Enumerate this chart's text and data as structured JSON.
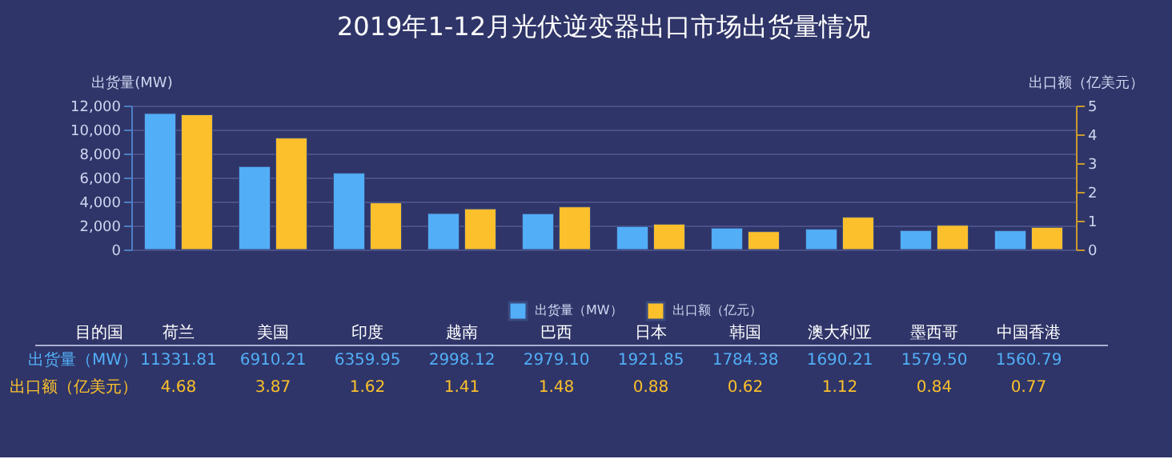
{
  "chart_data": {
    "type": "bar",
    "title": "2019年1-12月光伏逆变器出口市场出货量情况",
    "categories": [
      "荷兰",
      "美国",
      "印度",
      "越南",
      "巴西",
      "日本",
      "韩国",
      "澳大利亚",
      "墨西哥",
      "中国香港"
    ],
    "series": [
      {
        "name": "出货量（MW）",
        "color": "#52aef7",
        "values": [
          11331.81,
          6910.21,
          6359.95,
          2998.12,
          2979.1,
          1921.85,
          1784.38,
          1690.21,
          1579.5,
          1560.79
        ],
        "value_labels": [
          "11331.81",
          "6910.21",
          "6359.95",
          "2998.12",
          "2979.10",
          "1921.85",
          "1784.38",
          "1690.21",
          "1579.50",
          "1560.79"
        ]
      },
      {
        "name": "出口额（亿元）",
        "color": "#fcc02c",
        "axis": "y2",
        "values": [
          4.68,
          3.87,
          1.62,
          1.41,
          1.48,
          0.88,
          0.62,
          1.12,
          0.84,
          0.77
        ],
        "value_labels": [
          "4.68",
          "3.87",
          "1.62",
          "1.41",
          "1.48",
          "0.88",
          "0.62",
          "1.12",
          "0.84",
          "0.77"
        ]
      }
    ],
    "ylabel": "出货量(MW)",
    "y2label": "出口额（亿美元）",
    "ylim": [
      0,
      12000
    ],
    "yticks": [
      0,
      {
        "value": 2000,
        "label": "2,000"
      },
      {
        "value": 4000,
        "label": "4,000"
      },
      {
        "value": 6000,
        "label": "6,000"
      },
      {
        "value": 8000,
        "label": "8,000"
      },
      {
        "value": 10000,
        "label": "10,000"
      },
      {
        "value": 12000,
        "label": "12,000"
      }
    ],
    "y2lim": [
      0,
      5
    ],
    "y2ticks": [
      0,
      1,
      2,
      3,
      4,
      5
    ],
    "annotations": [
      "目的国",
      "出货量（MW）",
      "出口额（亿美元）"
    ],
    "grid": "y",
    "legend": "bottom"
  }
}
